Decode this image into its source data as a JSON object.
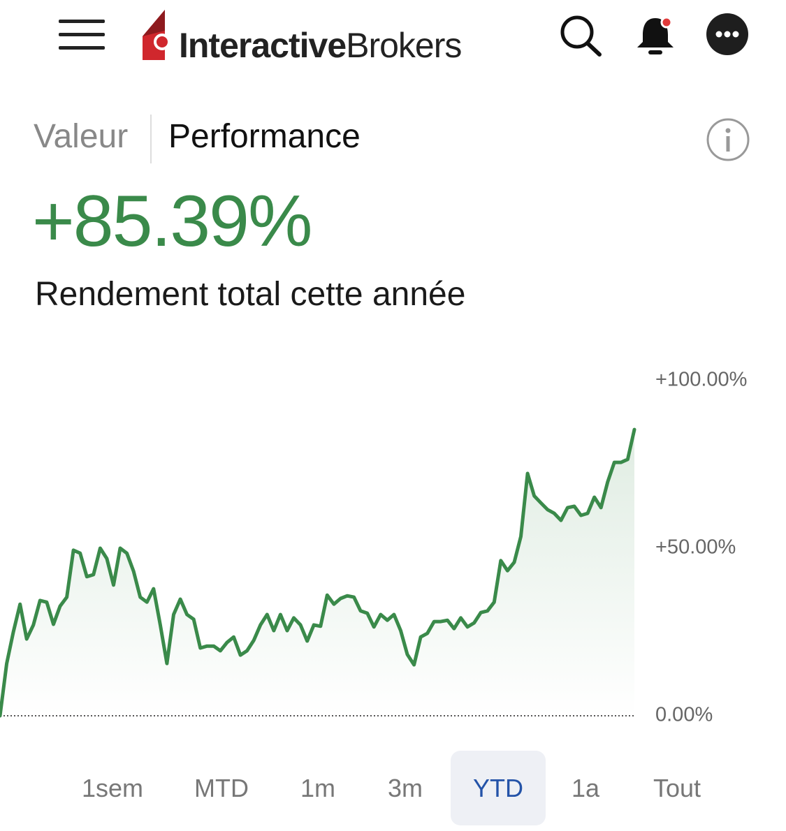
{
  "header": {
    "logo_bold": "Interactive",
    "logo_regular": "Brokers"
  },
  "tabs": [
    "Valeur",
    "Performance"
  ],
  "return_value": "+85.39%",
  "return_label": "Rendement total cette année",
  "chart_data": {
    "type": "line",
    "color": "#3a8a4a",
    "ylim": [
      0,
      100
    ],
    "yticks": [
      {
        "value": 100,
        "label": "+100.00%"
      },
      {
        "value": 50,
        "label": "+50.00%"
      },
      {
        "value": 0,
        "label": "0.00%"
      }
    ],
    "values": [
      0,
      15.6,
      25,
      33.3,
      22.9,
      27.1,
      34.4,
      33.9,
      27.3,
      32.7,
      35.4,
      49.4,
      48.5,
      41.5,
      42.1,
      50,
      46.9,
      39,
      50,
      48.5,
      43.1,
      35.4,
      33.9,
      37.9,
      27.1,
      15.6,
      30.2,
      34.8,
      30.2,
      28.8,
      20.2,
      20.8,
      20.8,
      19.4,
      21.9,
      23.5,
      18.1,
      19.4,
      22.5,
      27.1,
      30.2,
      25.4,
      30.2,
      25.4,
      29.2,
      27.1,
      22.3,
      27.1,
      26.7,
      36,
      33.3,
      35,
      35.8,
      35.4,
      31.3,
      30.6,
      26.5,
      30.2,
      28.5,
      30.2,
      25.4,
      18.3,
      15.2,
      23.5,
      24.6,
      28.1,
      28.1,
      28.5,
      26,
      29.2,
      26.5,
      27.7,
      30.8,
      31.3,
      33.9,
      46.3,
      43.3,
      45.8,
      53.5,
      72.3,
      65.6,
      63.5,
      61.5,
      60.4,
      58.3,
      62.1,
      62.5,
      59.8,
      60.4,
      65.2,
      62.1,
      69.8,
      75.6,
      75.6,
      76.5,
      85.39
    ]
  },
  "ranges": [
    "1sem",
    "MTD",
    "1m",
    "3m",
    "YTD",
    "1a",
    "Tout"
  ]
}
